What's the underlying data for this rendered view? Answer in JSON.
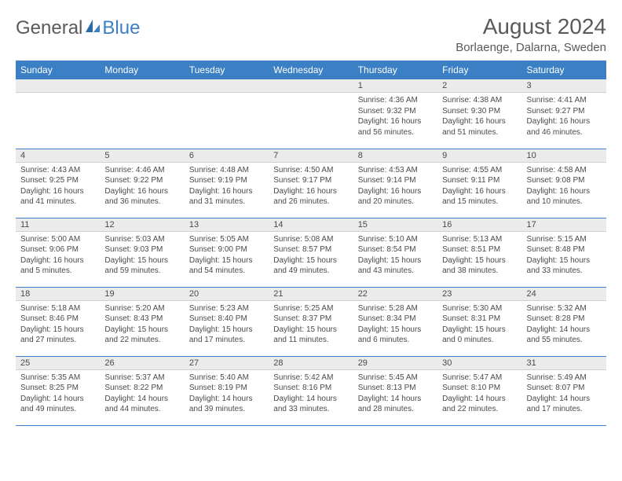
{
  "brand": {
    "name1": "General",
    "name2": "Blue"
  },
  "title": "August 2024",
  "location": "Borlaenge, Dalarna, Sweden",
  "colors": {
    "header_bg": "#3b7fc4",
    "header_text": "#ffffff",
    "daynum_bg": "#ebebeb",
    "row_divider": "#3b7fc4",
    "text": "#4a4a4a",
    "logo_gray": "#5a5a5a",
    "logo_blue": "#3b7fc4"
  },
  "day_header_fontsize": 12,
  "content_fontsize": 10,
  "daynum_fontsize": 11,
  "days_of_week": [
    "Sunday",
    "Monday",
    "Tuesday",
    "Wednesday",
    "Thursday",
    "Friday",
    "Saturday"
  ],
  "weeks": [
    [
      null,
      null,
      null,
      null,
      {
        "n": "1",
        "sunrise": "4:36 AM",
        "sunset": "9:32 PM",
        "daylight": "16 hours and 56 minutes."
      },
      {
        "n": "2",
        "sunrise": "4:38 AM",
        "sunset": "9:30 PM",
        "daylight": "16 hours and 51 minutes."
      },
      {
        "n": "3",
        "sunrise": "4:41 AM",
        "sunset": "9:27 PM",
        "daylight": "16 hours and 46 minutes."
      }
    ],
    [
      {
        "n": "4",
        "sunrise": "4:43 AM",
        "sunset": "9:25 PM",
        "daylight": "16 hours and 41 minutes."
      },
      {
        "n": "5",
        "sunrise": "4:46 AM",
        "sunset": "9:22 PM",
        "daylight": "16 hours and 36 minutes."
      },
      {
        "n": "6",
        "sunrise": "4:48 AM",
        "sunset": "9:19 PM",
        "daylight": "16 hours and 31 minutes."
      },
      {
        "n": "7",
        "sunrise": "4:50 AM",
        "sunset": "9:17 PM",
        "daylight": "16 hours and 26 minutes."
      },
      {
        "n": "8",
        "sunrise": "4:53 AM",
        "sunset": "9:14 PM",
        "daylight": "16 hours and 20 minutes."
      },
      {
        "n": "9",
        "sunrise": "4:55 AM",
        "sunset": "9:11 PM",
        "daylight": "16 hours and 15 minutes."
      },
      {
        "n": "10",
        "sunrise": "4:58 AM",
        "sunset": "9:08 PM",
        "daylight": "16 hours and 10 minutes."
      }
    ],
    [
      {
        "n": "11",
        "sunrise": "5:00 AM",
        "sunset": "9:06 PM",
        "daylight": "16 hours and 5 minutes."
      },
      {
        "n": "12",
        "sunrise": "5:03 AM",
        "sunset": "9:03 PM",
        "daylight": "15 hours and 59 minutes."
      },
      {
        "n": "13",
        "sunrise": "5:05 AM",
        "sunset": "9:00 PM",
        "daylight": "15 hours and 54 minutes."
      },
      {
        "n": "14",
        "sunrise": "5:08 AM",
        "sunset": "8:57 PM",
        "daylight": "15 hours and 49 minutes."
      },
      {
        "n": "15",
        "sunrise": "5:10 AM",
        "sunset": "8:54 PM",
        "daylight": "15 hours and 43 minutes."
      },
      {
        "n": "16",
        "sunrise": "5:13 AM",
        "sunset": "8:51 PM",
        "daylight": "15 hours and 38 minutes."
      },
      {
        "n": "17",
        "sunrise": "5:15 AM",
        "sunset": "8:48 PM",
        "daylight": "15 hours and 33 minutes."
      }
    ],
    [
      {
        "n": "18",
        "sunrise": "5:18 AM",
        "sunset": "8:46 PM",
        "daylight": "15 hours and 27 minutes."
      },
      {
        "n": "19",
        "sunrise": "5:20 AM",
        "sunset": "8:43 PM",
        "daylight": "15 hours and 22 minutes."
      },
      {
        "n": "20",
        "sunrise": "5:23 AM",
        "sunset": "8:40 PM",
        "daylight": "15 hours and 17 minutes."
      },
      {
        "n": "21",
        "sunrise": "5:25 AM",
        "sunset": "8:37 PM",
        "daylight": "15 hours and 11 minutes."
      },
      {
        "n": "22",
        "sunrise": "5:28 AM",
        "sunset": "8:34 PM",
        "daylight": "15 hours and 6 minutes."
      },
      {
        "n": "23",
        "sunrise": "5:30 AM",
        "sunset": "8:31 PM",
        "daylight": "15 hours and 0 minutes."
      },
      {
        "n": "24",
        "sunrise": "5:32 AM",
        "sunset": "8:28 PM",
        "daylight": "14 hours and 55 minutes."
      }
    ],
    [
      {
        "n": "25",
        "sunrise": "5:35 AM",
        "sunset": "8:25 PM",
        "daylight": "14 hours and 49 minutes."
      },
      {
        "n": "26",
        "sunrise": "5:37 AM",
        "sunset": "8:22 PM",
        "daylight": "14 hours and 44 minutes."
      },
      {
        "n": "27",
        "sunrise": "5:40 AM",
        "sunset": "8:19 PM",
        "daylight": "14 hours and 39 minutes."
      },
      {
        "n": "28",
        "sunrise": "5:42 AM",
        "sunset": "8:16 PM",
        "daylight": "14 hours and 33 minutes."
      },
      {
        "n": "29",
        "sunrise": "5:45 AM",
        "sunset": "8:13 PM",
        "daylight": "14 hours and 28 minutes."
      },
      {
        "n": "30",
        "sunrise": "5:47 AM",
        "sunset": "8:10 PM",
        "daylight": "14 hours and 22 minutes."
      },
      {
        "n": "31",
        "sunrise": "5:49 AM",
        "sunset": "8:07 PM",
        "daylight": "14 hours and 17 minutes."
      }
    ]
  ],
  "labels": {
    "sunrise": "Sunrise:",
    "sunset": "Sunset:",
    "daylight": "Daylight:"
  }
}
